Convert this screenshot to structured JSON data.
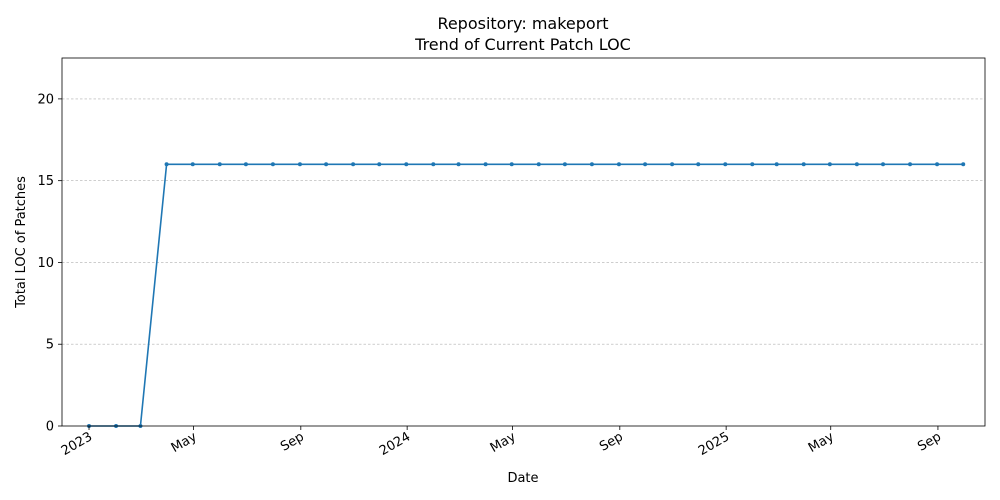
{
  "chart_data": {
    "type": "line",
    "title": "Repository: makeport",
    "subtitle": "Trend of Current Patch LOC",
    "xlabel": "Date",
    "ylabel": "Total LOC of Patches",
    "xlim": [
      "2022-12-01",
      "2025-10-25"
    ],
    "ylim": [
      0,
      22.5
    ],
    "yticks": [
      0,
      5,
      10,
      15,
      20
    ],
    "xticks": [
      {
        "date": "2023-01-01",
        "label": "2023"
      },
      {
        "date": "2023-05-01",
        "label": "May"
      },
      {
        "date": "2023-09-01",
        "label": "Sep"
      },
      {
        "date": "2024-01-01",
        "label": "2024"
      },
      {
        "date": "2024-05-01",
        "label": "May"
      },
      {
        "date": "2024-09-01",
        "label": "Sep"
      },
      {
        "date": "2025-01-01",
        "label": "2025"
      },
      {
        "date": "2025-05-01",
        "label": "May"
      },
      {
        "date": "2025-09-01",
        "label": "Sep"
      }
    ],
    "grid": "y",
    "color": "#1f77b4",
    "x": [
      "2023-01-01",
      "2023-02-01",
      "2023-03-01",
      "2023-03-31",
      "2023-04-30",
      "2023-05-31",
      "2023-06-30",
      "2023-07-31",
      "2023-08-31",
      "2023-09-30",
      "2023-10-31",
      "2023-11-30",
      "2023-12-31",
      "2024-01-31",
      "2024-02-29",
      "2024-03-31",
      "2024-04-30",
      "2024-05-31",
      "2024-06-30",
      "2024-07-31",
      "2024-08-31",
      "2024-09-30",
      "2024-10-31",
      "2024-11-30",
      "2024-12-31",
      "2025-01-31",
      "2025-02-28",
      "2025-03-31",
      "2025-04-30",
      "2025-05-31",
      "2025-06-30",
      "2025-07-31",
      "2025-08-31",
      "2025-09-30"
    ],
    "values": [
      0,
      0,
      0,
      16,
      16,
      16,
      16,
      16,
      16,
      16,
      16,
      16,
      16,
      16,
      16,
      16,
      16,
      16,
      16,
      16,
      16,
      16,
      16,
      16,
      16,
      16,
      16,
      16,
      16,
      16,
      16,
      16,
      16,
      16
    ]
  }
}
